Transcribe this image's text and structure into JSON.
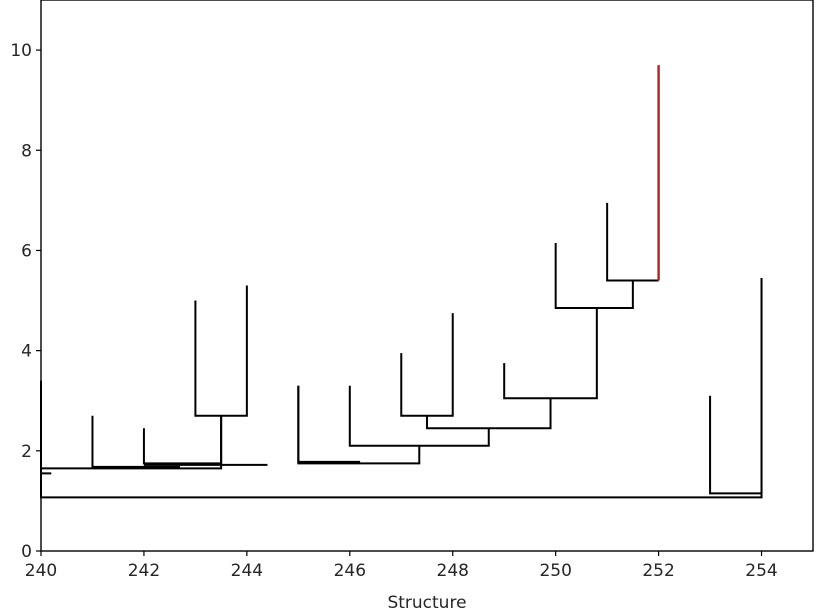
{
  "chart_data": {
    "type": "dendrogram",
    "title": "",
    "xlabel": "Structure",
    "ylabel": "",
    "xlim": [
      240,
      255
    ],
    "ylim": [
      0,
      11
    ],
    "x_ticks": [
      240,
      242,
      244,
      246,
      248,
      250,
      252,
      254
    ],
    "y_ticks": [
      0,
      2,
      4,
      6,
      8,
      10
    ],
    "grid": false,
    "default_color": "#000000",
    "highlight_color": "#b22222",
    "links": [
      {
        "x_left": 240.0,
        "x_right": 254.0,
        "y_left_child": 3.4,
        "y_right_child": 5.45,
        "y_join": 1.07
      },
      {
        "x_left": 253.0,
        "x_right": 254.0,
        "y_left_child": 3.1,
        "y_right_child": 5.45,
        "y_join": 1.15
      },
      {
        "x_left": 240.0,
        "x_right": 240.2,
        "y_left_child": 1.65,
        "y_right_child": 1.55,
        "y_join": 1.55
      },
      {
        "x_left": 240.0,
        "x_right": 243.5,
        "y_left_child": 3.4,
        "y_right_child": 2.7,
        "y_join": 1.65
      },
      {
        "x_left": 241.0,
        "x_right": 242.7,
        "y_left_child": 2.7,
        "y_right_child": 1.68,
        "y_join": 1.68
      },
      {
        "x_left": 242.0,
        "x_right": 243.5,
        "y_left_child": 2.45,
        "y_right_child": 2.7,
        "y_join": 1.75
      },
      {
        "x_left": 243.0,
        "x_right": 244.0,
        "y_left_child": 5.0,
        "y_right_child": 5.3,
        "y_join": 2.7
      },
      {
        "x_left": 242.0,
        "x_right": 244.4,
        "y_left_child": 1.72,
        "y_right_child": 1.72,
        "y_join": 1.72
      },
      {
        "x_left": 245.0,
        "x_right": 246.2,
        "y_left_child": 3.3,
        "y_right_child": 1.78,
        "y_join": 1.78
      },
      {
        "x_left": 245.0,
        "x_right": 247.35,
        "y_left_child": 3.3,
        "y_right_child": 2.1,
        "y_join": 1.75
      },
      {
        "x_left": 246.0,
        "x_right": 248.7,
        "y_left_child": 3.3,
        "y_right_child": 2.45,
        "y_join": 2.1
      },
      {
        "x_left": 247.0,
        "x_right": 248.0,
        "y_left_child": 3.95,
        "y_right_child": 4.75,
        "y_join": 2.7
      },
      {
        "x_left": 247.5,
        "x_right": 249.9,
        "y_left_child": 2.7,
        "y_right_child": 3.05,
        "y_join": 2.45
      },
      {
        "x_left": 249.0,
        "x_right": 250.8,
        "y_left_child": 3.75,
        "y_right_child": 4.85,
        "y_join": 3.05
      },
      {
        "x_left": 250.0,
        "x_right": 251.5,
        "y_left_child": 6.15,
        "y_right_child": 5.4,
        "y_join": 4.85
      },
      {
        "x_left": 251.0,
        "x_right": 252.0,
        "y_left_child": 6.95,
        "y_right_child": 5.4,
        "y_join": 5.4
      }
    ],
    "highlighted_branch": {
      "x": 252.0,
      "y_bottom": 5.4,
      "y_top": 9.7
    }
  }
}
